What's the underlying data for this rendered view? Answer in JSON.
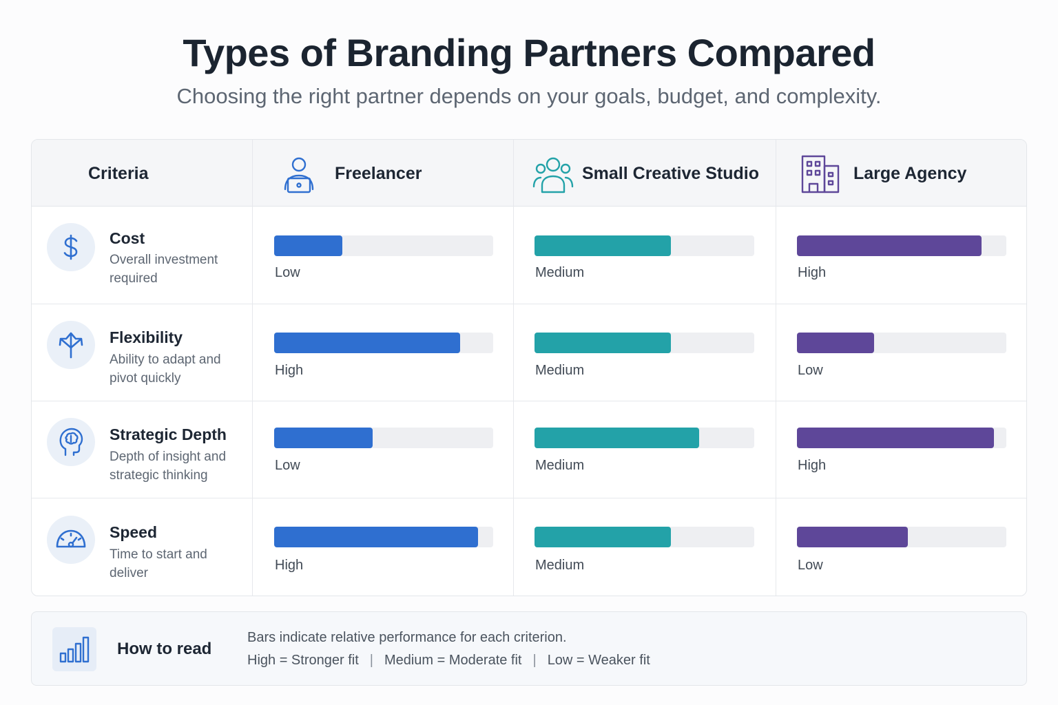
{
  "header": {
    "title": "Types of Branding Partners Compared",
    "subtitle": "Choosing the right partner depends on your goals, budget, and complexity."
  },
  "chart_data": {
    "type": "table",
    "title": "Types of Branding Partners Compared",
    "subtitle": "Choosing the right partner depends on your goals, budget, and complexity.",
    "criteria_header": "Criteria",
    "columns": [
      {
        "name": "Freelancer",
        "icon": "freelancer-laptop-icon",
        "color": "#2f6fd0"
      },
      {
        "name": "Small Creative Studio",
        "icon": "team-group-icon",
        "color": "#23a2a8"
      },
      {
        "name": "Large Agency",
        "icon": "office-building-icon",
        "color": "#5e4799"
      }
    ],
    "rows": [
      {
        "name": "Cost",
        "description": "Overall investment required",
        "icon": "dollar-icon",
        "cells": [
          {
            "label": "Low",
            "value": 0.31
          },
          {
            "label": "Medium",
            "value": 0.62
          },
          {
            "label": "High",
            "value": 0.88
          }
        ]
      },
      {
        "name": "Flexibility",
        "description": "Ability to adapt and pivot quickly",
        "icon": "branching-arrows-icon",
        "cells": [
          {
            "label": "High",
            "value": 0.85
          },
          {
            "label": "Medium",
            "value": 0.62
          },
          {
            "label": "Low",
            "value": 0.37
          }
        ]
      },
      {
        "name": "Strategic Depth",
        "description": "Depth of insight and strategic thinking",
        "icon": "head-brain-icon",
        "cells": [
          {
            "label": "Low",
            "value": 0.45
          },
          {
            "label": "Medium",
            "value": 0.75
          },
          {
            "label": "High",
            "value": 0.94
          }
        ]
      },
      {
        "name": "Speed",
        "description": "Time to start and deliver",
        "icon": "speedometer-icon",
        "cells": [
          {
            "label": "High",
            "value": 0.93
          },
          {
            "label": "Medium",
            "value": 0.62
          },
          {
            "label": "Low",
            "value": 0.53
          }
        ]
      }
    ]
  },
  "legend": {
    "icon": "bar-chart-icon",
    "title": "How to read",
    "line1": "Bars indicate relative performance for each criterion.",
    "items": [
      "High = Stronger fit",
      "Medium = Moderate fit",
      "Low = Weaker fit"
    ]
  }
}
